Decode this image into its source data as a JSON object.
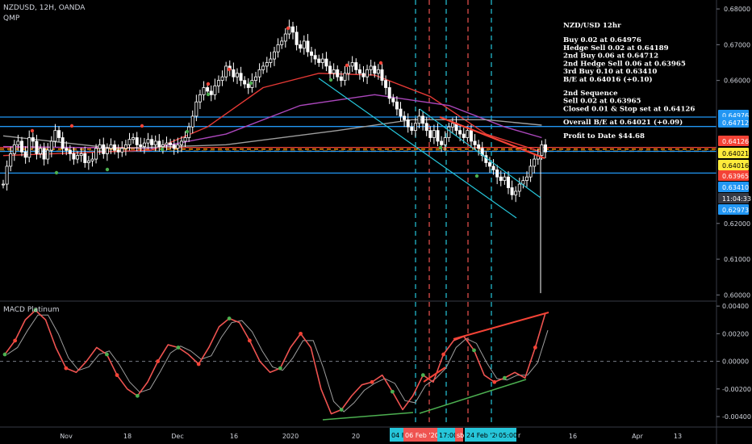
{
  "header": {
    "symbol": "NZDUSD, 12H, OANDA",
    "indicator": "QMP",
    "macd_label": "MACD Platinum"
  },
  "colors": {
    "background": "#000000",
    "candle": "#ffffff",
    "cyan_vline": "#26c6da",
    "red_vline": "#ef5350",
    "ma_red": "#e53935",
    "ma_purple": "#ab47bc",
    "ma_gray": "#9e9e9e",
    "blue_level": "#2196f3",
    "orange_level": "#ff9800",
    "channel": "#26c6da",
    "macd_line": "#ef5350",
    "green_trend": "#4caf50",
    "up_dot": "#4caf50",
    "down_dot": "#f44336"
  },
  "annotation": {
    "title": "NZD/USD 12hr",
    "lines": [
      "Buy 0.02 at 0.64976",
      "Hedge Sell 0.02 at 0.64189",
      "2nd Buy 0.06 at 0.64712",
      "2nd Hedge Sell 0.06 at 0.63965",
      "3rd Buy 0.10 at 0.63410",
      "B/E at 0.64016 (+0.10)",
      "",
      "2nd Sequence",
      "Sell 0.02 at 0.63965",
      "Closed 0.01 & Stop set at 0.64126",
      "",
      "Overall B/E at 0.64021 (+0.09)",
      "",
      "Profit to Date $44.68"
    ]
  },
  "price_axis": {
    "ticks": [
      "0.68000",
      "0.67000",
      "0.66000",
      "0.62000",
      "0.61000",
      "0.60000"
    ],
    "tags": [
      {
        "label": "0.64976",
        "bg": "#2196f3",
        "fg": "#ffffff"
      },
      {
        "label": "0.64712",
        "bg": "#2196f3",
        "fg": "#ffffff"
      },
      {
        "label": "0.64126",
        "bg": "#f44336",
        "fg": "#ffffff"
      },
      {
        "label": "0.64021",
        "bg": "#ffeb3b",
        "fg": "#000000"
      },
      {
        "label": "0.64016",
        "bg": "#ffeb3b",
        "fg": "#000000"
      },
      {
        "label": "0.63965",
        "bg": "#f44336",
        "fg": "#ffffff"
      },
      {
        "label": "0.63410",
        "bg": "#2196f3",
        "fg": "#ffffff"
      },
      {
        "label": "11:04:33",
        "bg": "#363a45",
        "fg": "#ffffff"
      },
      {
        "label": "0.62973",
        "bg": "#2196f3",
        "fg": "#ffffff"
      }
    ]
  },
  "macd_axis": {
    "ticks": [
      "0.00400",
      "0.00200",
      "0.00000",
      "-0.00200",
      "-0.00400"
    ]
  },
  "time_axis": {
    "ticks": [
      "Nov",
      "18",
      "Dec",
      "16",
      "2020",
      "20",
      "16",
      "Apr",
      "13"
    ],
    "highlights": [
      {
        "label": "04 F",
        "bg": "#26c6da",
        "fg": "#000000"
      },
      {
        "label": "06 Feb '20",
        "bg": "#ef5350",
        "fg": "#ffffff"
      },
      {
        "label": "17:00",
        "bg": "#26c6da",
        "fg": "#000000"
      },
      {
        "label": "sb",
        "bg": "#ef5350",
        "fg": "#ffffff"
      },
      {
        "label": "24 Feb '20",
        "bg": "#26c6da",
        "fg": "#000000"
      },
      {
        "label": "05:00",
        "bg": "#26c6da",
        "fg": "#000000"
      },
      {
        "label": "r",
        "bg": "#000000",
        "fg": "#d1d4dc"
      }
    ]
  },
  "chart_data": {
    "type": "candlestick",
    "price_scale": {
      "min": 0.5985,
      "max": 0.6825
    },
    "price_levels": [
      {
        "value": 0.64976,
        "color": "#2196f3",
        "style": "solid"
      },
      {
        "value": 0.64712,
        "color": "#2196f3",
        "style": "solid"
      },
      {
        "value": 0.64126,
        "color": "#f44336",
        "style": "solid"
      },
      {
        "value": 0.64021,
        "color": "#ff9800",
        "style": "dashed"
      },
      {
        "value": 0.64016,
        "color": "#2196f3",
        "style": "solid"
      },
      {
        "value": 0.6341,
        "color": "#2196f3",
        "style": "solid"
      }
    ],
    "close_path": [
      0.631,
      0.636,
      0.6395,
      0.642,
      0.643,
      0.64,
      0.6385,
      0.644,
      0.643,
      0.6395,
      0.641,
      0.638,
      0.6405,
      0.643,
      0.646,
      0.644,
      0.641,
      0.6405,
      0.6395,
      0.638,
      0.639,
      0.6395,
      0.637,
      0.6375,
      0.638,
      0.641,
      0.642,
      0.6395,
      0.641,
      0.642,
      0.6405,
      0.64,
      0.641,
      0.642,
      0.6435,
      0.644,
      0.642,
      0.6415,
      0.6425,
      0.6435,
      0.642,
      0.643,
      0.6415,
      0.642,
      0.6425,
      0.642,
      0.641,
      0.642,
      0.643,
      0.644,
      0.647,
      0.65,
      0.654,
      0.656,
      0.658,
      0.657,
      0.656,
      0.6585,
      0.66,
      0.661,
      0.664,
      0.663,
      0.661,
      0.662,
      0.66,
      0.659,
      0.658,
      0.66,
      0.661,
      0.663,
      0.664,
      0.665,
      0.666,
      0.668,
      0.67,
      0.671,
      0.673,
      0.675,
      0.6735,
      0.67,
      0.669,
      0.671,
      0.668,
      0.667,
      0.666,
      0.665,
      0.666,
      0.664,
      0.662,
      0.663,
      0.661,
      0.66,
      0.662,
      0.664,
      0.665,
      0.663,
      0.662,
      0.661,
      0.663,
      0.664,
      0.662,
      0.663,
      0.66,
      0.658,
      0.655,
      0.654,
      0.652,
      0.65,
      0.649,
      0.647,
      0.646,
      0.648,
      0.65,
      0.648,
      0.646,
      0.644,
      0.646,
      0.643,
      0.642,
      0.644,
      0.647,
      0.648,
      0.646,
      0.645,
      0.644,
      0.646,
      0.643,
      0.642,
      0.641,
      0.639,
      0.637,
      0.636,
      0.635,
      0.633,
      0.632,
      0.633,
      0.63,
      0.628,
      0.629,
      0.631,
      0.632,
      0.633,
      0.636,
      0.638,
      0.639,
      0.642,
      0.64
    ],
    "spike_low": 0.6005,
    "moving_averages": [
      {
        "name": "",
        "color": "#e53935",
        "points": [
          [
            0,
            0.639
          ],
          [
            40,
            0.6405
          ],
          [
            55,
            0.647
          ],
          [
            70,
            0.658
          ],
          [
            85,
            0.662
          ],
          [
            100,
            0.6615
          ],
          [
            115,
            0.6555
          ],
          [
            130,
            0.645
          ],
          [
            145,
            0.64
          ]
        ]
      },
      {
        "name": "",
        "color": "#ab47bc",
        "points": [
          [
            0,
            0.6415
          ],
          [
            40,
            0.641
          ],
          [
            60,
            0.645
          ],
          [
            80,
            0.653
          ],
          [
            100,
            0.656
          ],
          [
            120,
            0.653
          ],
          [
            135,
            0.647
          ],
          [
            145,
            0.644
          ]
        ]
      },
      {
        "name": "",
        "color": "#9e9e9e",
        "points": [
          [
            0,
            0.6445
          ],
          [
            30,
            0.641
          ],
          [
            60,
            0.642
          ],
          [
            90,
            0.646
          ],
          [
            110,
            0.649
          ],
          [
            130,
            0.649
          ],
          [
            145,
            0.6475
          ]
        ]
      }
    ],
    "macd": {
      "range": [
        -0.0047,
        0.0043
      ],
      "line": [
        0.0005,
        0.0015,
        0.003,
        0.0037,
        0.003,
        0.001,
        -0.0005,
        -0.0008,
        0.0,
        0.001,
        0.0005,
        -0.001,
        -0.002,
        -0.0025,
        -0.0015,
        0.0,
        0.0012,
        0.001,
        0.0005,
        -0.0002,
        0.001,
        0.0025,
        0.0031,
        0.0028,
        0.0015,
        0.0,
        -0.0008,
        -0.0005,
        0.001,
        0.002,
        0.001,
        -0.002,
        -0.0038,
        -0.0035,
        -0.0025,
        -0.0017,
        -0.0015,
        -0.001,
        -0.0022,
        -0.0035,
        -0.0025,
        -0.001,
        -0.0015,
        0.0005,
        0.0015,
        0.0018,
        0.0008,
        -0.001,
        -0.0015,
        -0.0012,
        -0.0008,
        -0.0012,
        0.001,
        0.0035
      ],
      "dots_up": [
        0,
        3,
        10,
        13,
        17,
        22,
        27,
        33,
        38,
        41,
        46,
        49
      ],
      "dots_down": [
        1,
        6,
        11,
        15,
        19,
        24,
        29,
        36,
        43,
        48,
        52
      ]
    },
    "trendlines_px": []
  }
}
